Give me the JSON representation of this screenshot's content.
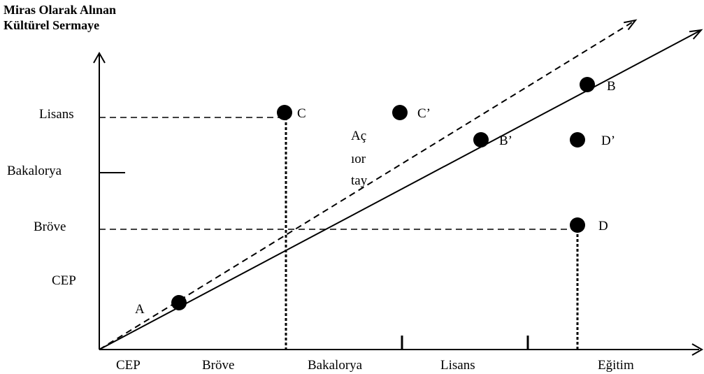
{
  "diagram": {
    "y_axis_title_line1": "Miras Olarak Alınan",
    "y_axis_title_line2": "Kültürel Sermaye",
    "x_axis_title": "Eğitim",
    "y_levels": [
      "CEP",
      "Bröve",
      "Bakalorya",
      "Lisans"
    ],
    "x_levels": [
      "CEP",
      "Bröve",
      "Bakalorya",
      "Lisans"
    ],
    "gap_label_lines": [
      "Aç",
      "ıor",
      "tay"
    ],
    "points": [
      "A",
      "B",
      "B’",
      "C",
      "C’",
      "D",
      "D’"
    ]
  }
}
